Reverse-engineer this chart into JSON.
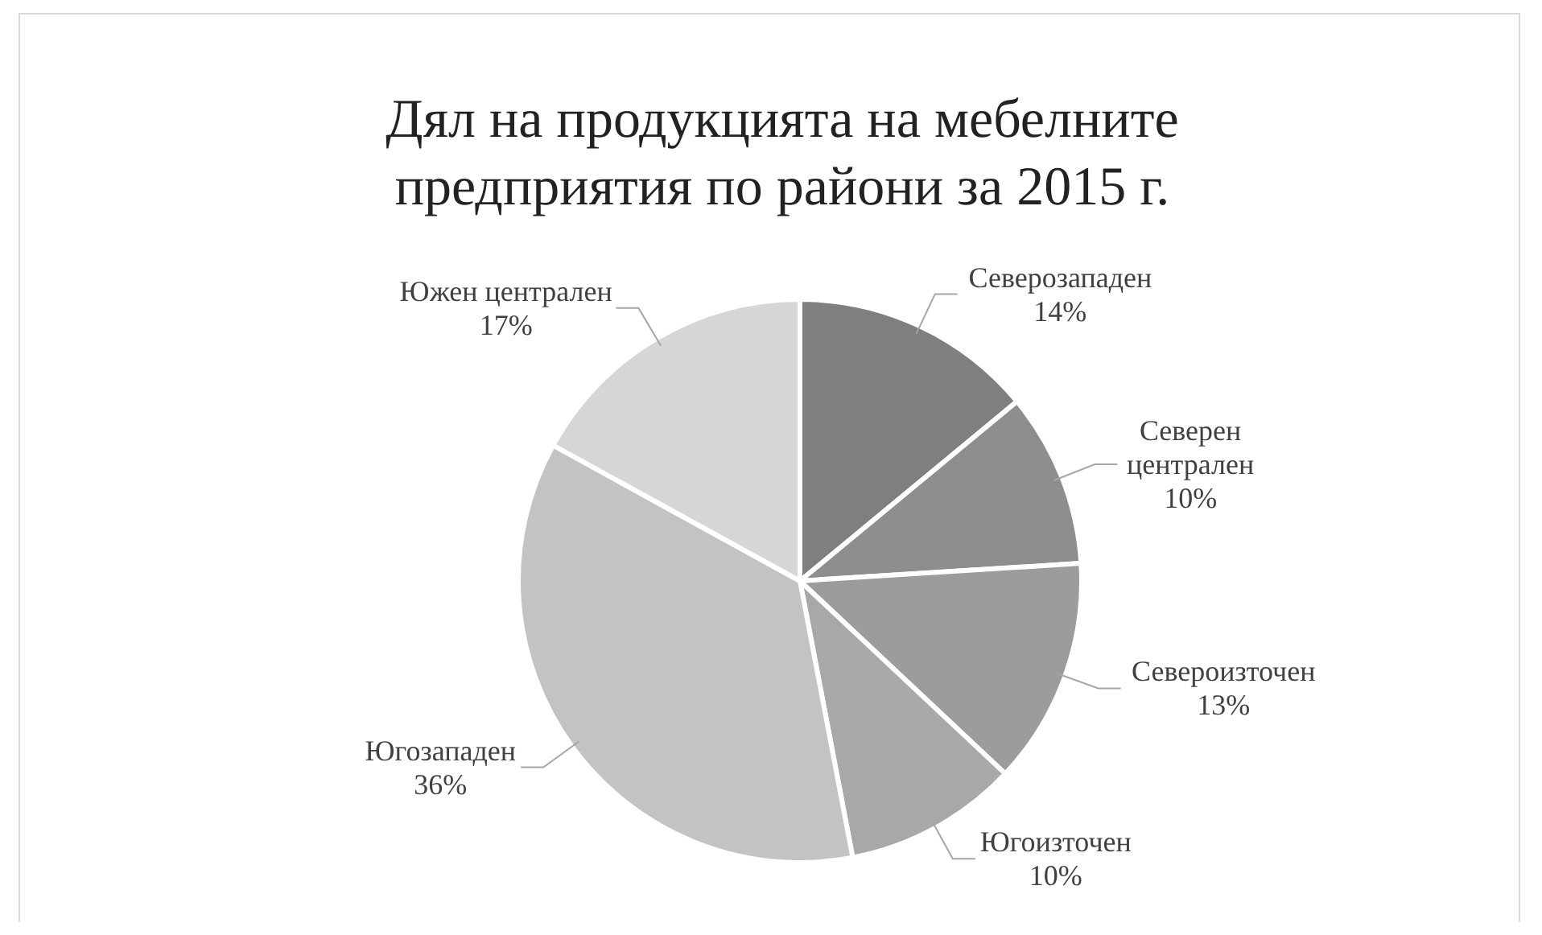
{
  "chart_data": {
    "type": "pie",
    "title": "Дял на продукцията на мебелните предприятия по райони за 2015 г.",
    "categories": [
      "Северозападен",
      "Северен централен",
      "Североизточен",
      "Югоизточен",
      "Югозападен",
      "Южен централен"
    ],
    "values": [
      14,
      10,
      13,
      10,
      36,
      17
    ],
    "colors": [
      "#7f7f7f",
      "#8e8e8e",
      "#9c9c9c",
      "#a8a8a8",
      "#c3c3c3",
      "#d6d6d6"
    ],
    "value_labels": [
      "14%",
      "10%",
      "13%",
      "10%",
      "36%",
      "17%"
    ]
  }
}
